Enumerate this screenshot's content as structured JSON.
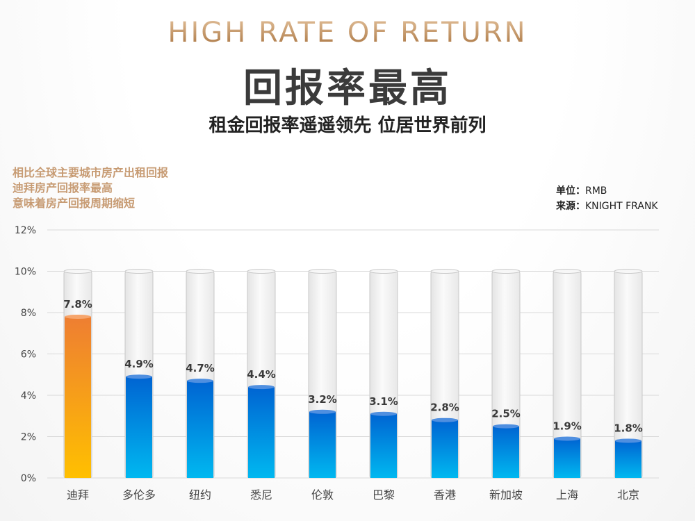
{
  "header": {
    "title_en": "HIGH RATE OF RETURN",
    "title_cn": "回报率最高",
    "subtitle": "租金回报率遥遥领先 位居世界前列"
  },
  "note": {
    "lines": [
      "相比全球主要城市房产出租回报",
      "迪拜房产回报率最高",
      "意味着房产回报周期缩短"
    ]
  },
  "meta": {
    "unit_key": "单位：",
    "unit_val": "RMB",
    "source_key": "来源：",
    "source_val": "KNIGHT FRANK"
  },
  "colors": {
    "highlight_top": "#ee7e32",
    "highlight_bottom": "#ffc000",
    "bar_top": "#0064d2",
    "bar_bottom": "#00b8f0",
    "tube": "#f2f2f2",
    "tube_border": "#c8c8c8",
    "grid": "#d9d9d9"
  },
  "chart_data": {
    "type": "bar",
    "categories": [
      "迪拜",
      "多伦多",
      "纽约",
      "悉尼",
      "伦敦",
      "巴黎",
      "香港",
      "新加坡",
      "上海",
      "北京"
    ],
    "values": [
      7.8,
      4.9,
      4.7,
      4.4,
      3.2,
      3.1,
      2.8,
      2.5,
      1.9,
      1.8
    ],
    "value_labels": [
      "7.8%",
      "4.9%",
      "4.7%",
      "4.4%",
      "3.2%",
      "3.1%",
      "2.8%",
      "2.5%",
      "1.9%",
      "1.8%"
    ],
    "highlight_index": 0,
    "tube_max": 10,
    "ylim": [
      0,
      12
    ],
    "yticks": [
      0,
      2,
      4,
      6,
      8,
      10,
      12
    ],
    "ytick_labels": [
      "0%",
      "2%",
      "4%",
      "6%",
      "8%",
      "10%",
      "12%"
    ],
    "grid": true
  }
}
